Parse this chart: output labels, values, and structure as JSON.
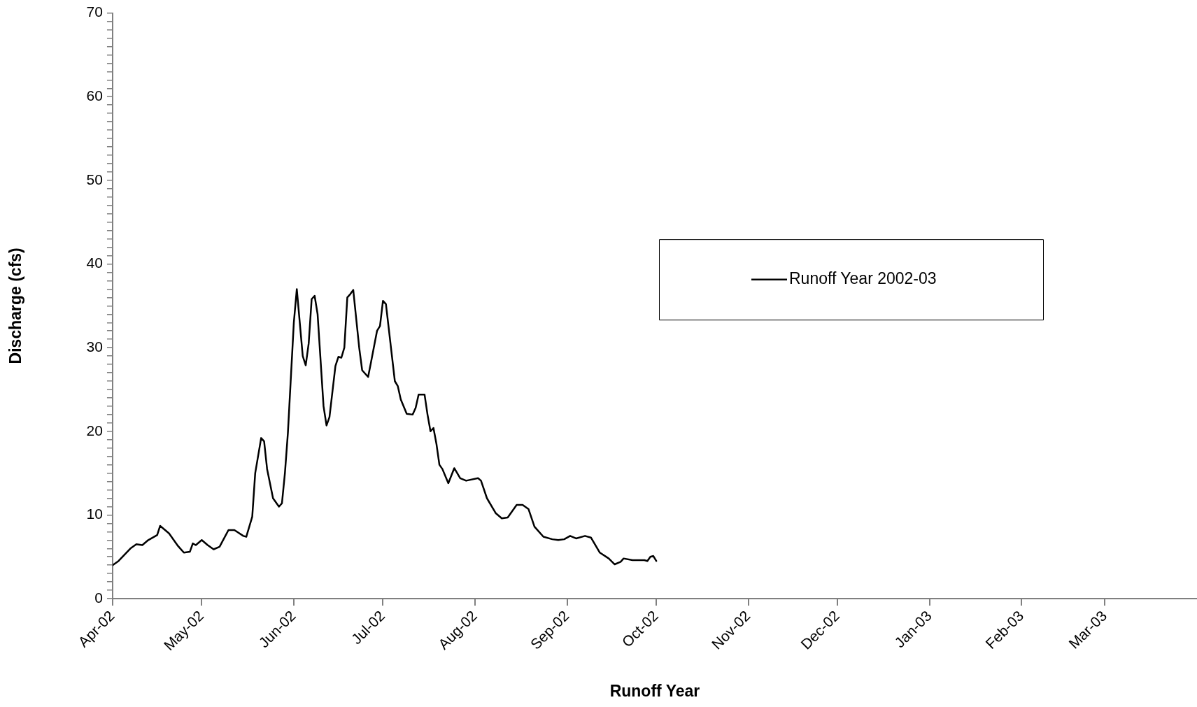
{
  "chart_data": {
    "type": "line",
    "xlabel": "Runoff Year",
    "ylabel": "Discharge (cfs)",
    "legend": "right",
    "grid": false,
    "marker": "none",
    "line_style": "solid",
    "xlim": [
      "2002-04-01",
      "2003-04-01"
    ],
    "xticks": [
      {
        "value": "2002-04-01",
        "label": "Apr-02"
      },
      {
        "value": "2002-05-01",
        "label": "May-02"
      },
      {
        "value": "2002-06-01",
        "label": "Jun-02"
      },
      {
        "value": "2002-07-01",
        "label": "Jul-02"
      },
      {
        "value": "2002-08-01",
        "label": "Aug-02"
      },
      {
        "value": "2002-09-01",
        "label": "Sep-02"
      },
      {
        "value": "2002-10-01",
        "label": "Oct-02"
      },
      {
        "value": "2002-11-01",
        "label": "Nov-02"
      },
      {
        "value": "2002-12-01",
        "label": "Dec-02"
      },
      {
        "value": "2003-01-01",
        "label": "Jan-03"
      },
      {
        "value": "2003-02-01",
        "label": "Feb-03"
      },
      {
        "value": "2003-03-01",
        "label": "Mar-03"
      }
    ],
    "ylim": [
      0,
      70
    ],
    "yticks": [
      0,
      {
        "value": 1,
        "label": null
      },
      {
        "value": 2,
        "label": null
      },
      {
        "value": 3,
        "label": null
      },
      {
        "value": 4,
        "label": null
      },
      {
        "value": 5,
        "label": null
      },
      {
        "value": 6,
        "label": null
      },
      {
        "value": 7,
        "label": null
      },
      {
        "value": 8,
        "label": null
      },
      {
        "value": 9,
        "label": null
      },
      10,
      {
        "value": 11,
        "label": null
      },
      {
        "value": 12,
        "label": null
      },
      {
        "value": 13,
        "label": null
      },
      {
        "value": 14,
        "label": null
      },
      {
        "value": 15,
        "label": null
      },
      {
        "value": 16,
        "label": null
      },
      {
        "value": 17,
        "label": null
      },
      {
        "value": 18,
        "label": null
      },
      {
        "value": 19,
        "label": null
      },
      20,
      {
        "value": 21,
        "label": null
      },
      {
        "value": 22,
        "label": null
      },
      {
        "value": 23,
        "label": null
      },
      {
        "value": 24,
        "label": null
      },
      {
        "value": 25,
        "label": null
      },
      {
        "value": 26,
        "label": null
      },
      {
        "value": 27,
        "label": null
      },
      {
        "value": 28,
        "label": null
      },
      {
        "value": 29,
        "label": null
      },
      30,
      {
        "value": 31,
        "label": null
      },
      {
        "value": 32,
        "label": null
      },
      {
        "value": 33,
        "label": null
      },
      {
        "value": 34,
        "label": null
      },
      {
        "value": 35,
        "label": null
      },
      {
        "value": 36,
        "label": null
      },
      {
        "value": 37,
        "label": null
      },
      {
        "value": 38,
        "label": null
      },
      {
        "value": 39,
        "label": null
      },
      40,
      {
        "value": 41,
        "label": null
      },
      {
        "value": 42,
        "label": null
      },
      {
        "value": 43,
        "label": null
      },
      {
        "value": 44,
        "label": null
      },
      {
        "value": 45,
        "label": null
      },
      {
        "value": 46,
        "label": null
      },
      {
        "value": 47,
        "label": null
      },
      {
        "value": 48,
        "label": null
      },
      {
        "value": 49,
        "label": null
      },
      50,
      {
        "value": 51,
        "label": null
      },
      {
        "value": 52,
        "label": null
      },
      {
        "value": 53,
        "label": null
      },
      {
        "value": 54,
        "label": null
      },
      {
        "value": 55,
        "label": null
      },
      {
        "value": 56,
        "label": null
      },
      {
        "value": 57,
        "label": null
      },
      {
        "value": 58,
        "label": null
      },
      {
        "value": 59,
        "label": null
      },
      60,
      {
        "value": 61,
        "label": null
      },
      {
        "value": 62,
        "label": null
      },
      {
        "value": 63,
        "label": null
      },
      {
        "value": 64,
        "label": null
      },
      {
        "value": 65,
        "label": null
      },
      {
        "value": 66,
        "label": null
      },
      {
        "value": 67,
        "label": null
      },
      {
        "value": 68,
        "label": null
      },
      {
        "value": 69,
        "label": null
      },
      70
    ],
    "series": [
      {
        "name": "Runoff Year 2002-03",
        "color": "#000000",
        "x": [
          "2002-04-01",
          "2002-04-03",
          "2002-04-07",
          "2002-04-09",
          "2002-04-11",
          "2002-04-13",
          "2002-04-16",
          "2002-04-17",
          "2002-04-20",
          "2002-04-23",
          "2002-04-25",
          "2002-04-27",
          "2002-04-28",
          "2002-04-29",
          "2002-05-01",
          "2002-05-03",
          "2002-05-05",
          "2002-05-07",
          "2002-05-10",
          "2002-05-12",
          "2002-05-15",
          "2002-05-16",
          "2002-05-18",
          "2002-05-19",
          "2002-05-21",
          "2002-05-22",
          "2002-05-23",
          "2002-05-25",
          "2002-05-27",
          "2002-05-28",
          "2002-05-29",
          "2002-05-30",
          "2002-06-01",
          "2002-06-02",
          "2002-06-04",
          "2002-06-05",
          "2002-06-06",
          "2002-06-07",
          "2002-06-08",
          "2002-06-09",
          "2002-06-11",
          "2002-06-12",
          "2002-06-13",
          "2002-06-15",
          "2002-06-16",
          "2002-06-17",
          "2002-06-18",
          "2002-06-19",
          "2002-06-20",
          "2002-06-21",
          "2002-06-23",
          "2002-06-24",
          "2002-06-26",
          "2002-06-27",
          "2002-06-29",
          "2002-06-30",
          "2002-07-01",
          "2002-07-02",
          "2002-07-05",
          "2002-07-06",
          "2002-07-07",
          "2002-07-09",
          "2002-07-11",
          "2002-07-12",
          "2002-07-13",
          "2002-07-15",
          "2002-07-16",
          "2002-07-17",
          "2002-07-18",
          "2002-07-19",
          "2002-07-20",
          "2002-07-21",
          "2002-07-23",
          "2002-07-25",
          "2002-07-27",
          "2002-07-29",
          "2002-08-02",
          "2002-08-03",
          "2002-08-05",
          "2002-08-08",
          "2002-08-10",
          "2002-08-12",
          "2002-08-15",
          "2002-08-17",
          "2002-08-19",
          "2002-08-21",
          "2002-08-24",
          "2002-08-27",
          "2002-08-29",
          "2002-08-31",
          "2002-09-02",
          "2002-09-04",
          "2002-09-07",
          "2002-09-09",
          "2002-09-12",
          "2002-09-15",
          "2002-09-17",
          "2002-09-19",
          "2002-09-20",
          "2002-09-23",
          "2002-09-27",
          "2002-09-28",
          "2002-09-29",
          "2002-09-30",
          "2002-10-01"
        ],
        "values": [
          4.0,
          4.5,
          6.0,
          6.5,
          6.4,
          7.0,
          7.6,
          8.7,
          7.8,
          6.3,
          5.5,
          5.6,
          6.6,
          6.4,
          7.0,
          6.4,
          5.9,
          6.2,
          8.2,
          8.2,
          7.5,
          7.4,
          9.8,
          15,
          19.2,
          18.8,
          15.5,
          12,
          11,
          11.4,
          15,
          19.8,
          33,
          37,
          29,
          27.9,
          30.5,
          35.8,
          36.2,
          34,
          23,
          20.7,
          21.7,
          27.8,
          28.9,
          28.8,
          30,
          36,
          36.4,
          36.9,
          30,
          27.3,
          26.5,
          28.3,
          32,
          32.6,
          35.6,
          35.2,
          26,
          25.4,
          23.8,
          22.1,
          22.0,
          22.8,
          24.4,
          24.4,
          22,
          20,
          20.4,
          18.5,
          16,
          15.5,
          13.8,
          15.6,
          14.4,
          14.1,
          14.4,
          14.1,
          12,
          10.2,
          9.6,
          9.7,
          11.2,
          11.2,
          10.7,
          8.6,
          7.4,
          7.1,
          7.0,
          7.1,
          7.5,
          7.2,
          7.5,
          7.3,
          5.5,
          4.8,
          4.1,
          4.4,
          4.8,
          4.6,
          4.6,
          4.5,
          5.0,
          5.1,
          4.5
        ]
      }
    ]
  }
}
